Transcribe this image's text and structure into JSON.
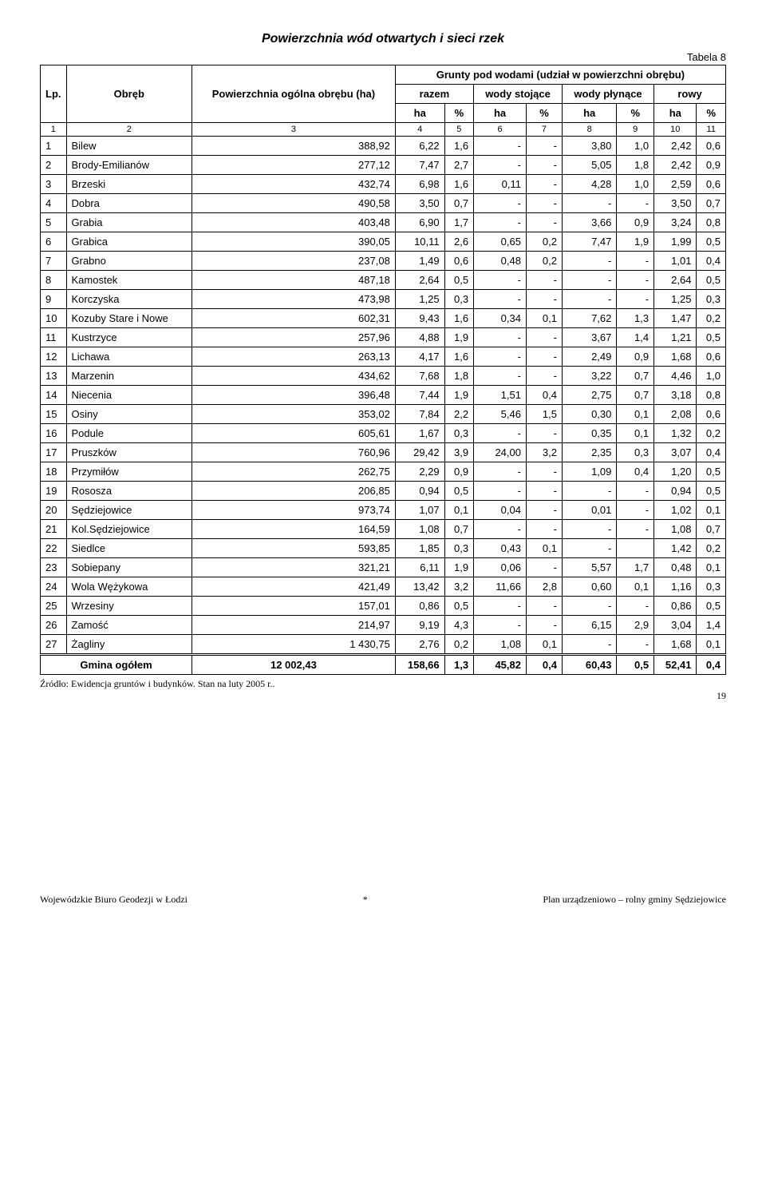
{
  "title": "Powierzchnia wód otwartych i sieci rzek",
  "table_label": "Tabela 8",
  "header": {
    "lp": "Lp.",
    "obreb": "Obręb",
    "pow": "Powierzchnia ogólna obrębu (ha)",
    "grunty": "Grunty pod wodami (udział w powierzchni obrębu)",
    "razem": "razem",
    "stojace": "wody stojące",
    "plynace": "wody płynące",
    "rowy": "rowy",
    "ha": "ha",
    "pct": "%"
  },
  "colnums": [
    "1",
    "2",
    "3",
    "4",
    "5",
    "6",
    "7",
    "8",
    "9",
    "10",
    "11"
  ],
  "rows": [
    {
      "lp": "1",
      "n": "Bilew",
      "p": "388,92",
      "r1": "6,22",
      "r2": "1,6",
      "s1": "-",
      "s2": "-",
      "pl1": "3,80",
      "pl2": "1,0",
      "ro1": "2,42",
      "ro2": "0,6"
    },
    {
      "lp": "2",
      "n": "Brody-Emilianów",
      "p": "277,12",
      "r1": "7,47",
      "r2": "2,7",
      "s1": "-",
      "s2": "-",
      "pl1": "5,05",
      "pl2": "1,8",
      "ro1": "2,42",
      "ro2": "0,9"
    },
    {
      "lp": "3",
      "n": "Brzeski",
      "p": "432,74",
      "r1": "6,98",
      "r2": "1,6",
      "s1": "0,11",
      "s2": "-",
      "pl1": "4,28",
      "pl2": "1,0",
      "ro1": "2,59",
      "ro2": "0,6"
    },
    {
      "lp": "4",
      "n": "Dobra",
      "p": "490,58",
      "r1": "3,50",
      "r2": "0,7",
      "s1": "-",
      "s2": "-",
      "pl1": "-",
      "pl2": "-",
      "ro1": "3,50",
      "ro2": "0,7"
    },
    {
      "lp": "5",
      "n": "Grabia",
      "p": "403,48",
      "r1": "6,90",
      "r2": "1,7",
      "s1": "-",
      "s2": "-",
      "pl1": "3,66",
      "pl2": "0,9",
      "ro1": "3,24",
      "ro2": "0,8"
    },
    {
      "lp": "6",
      "n": "Grabica",
      "p": "390,05",
      "r1": "10,11",
      "r2": "2,6",
      "s1": "0,65",
      "s2": "0,2",
      "pl1": "7,47",
      "pl2": "1,9",
      "ro1": "1,99",
      "ro2": "0,5"
    },
    {
      "lp": "7",
      "n": "Grabno",
      "p": "237,08",
      "r1": "1,49",
      "r2": "0,6",
      "s1": "0,48",
      "s2": "0,2",
      "pl1": "-",
      "pl2": "-",
      "ro1": "1,01",
      "ro2": "0,4"
    },
    {
      "lp": "8",
      "n": "Kamostek",
      "p": "487,18",
      "r1": "2,64",
      "r2": "0,5",
      "s1": "-",
      "s2": "-",
      "pl1": "-",
      "pl2": "-",
      "ro1": "2,64",
      "ro2": "0,5"
    },
    {
      "lp": "9",
      "n": "Korczyska",
      "p": "473,98",
      "r1": "1,25",
      "r2": "0,3",
      "s1": "-",
      "s2": "-",
      "pl1": "-",
      "pl2": "-",
      "ro1": "1,25",
      "ro2": "0,3"
    },
    {
      "lp": "10",
      "n": "Kozuby Stare i Nowe",
      "p": "602,31",
      "r1": "9,43",
      "r2": "1,6",
      "s1": "0,34",
      "s2": "0,1",
      "pl1": "7,62",
      "pl2": "1,3",
      "ro1": "1,47",
      "ro2": "0,2"
    },
    {
      "lp": "11",
      "n": "Kustrzyce",
      "p": "257,96",
      "r1": "4,88",
      "r2": "1,9",
      "s1": "-",
      "s2": "-",
      "pl1": "3,67",
      "pl2": "1,4",
      "ro1": "1,21",
      "ro2": "0,5"
    },
    {
      "lp": "12",
      "n": "Lichawa",
      "p": "263,13",
      "r1": "4,17",
      "r2": "1,6",
      "s1": "-",
      "s2": "-",
      "pl1": "2,49",
      "pl2": "0,9",
      "ro1": "1,68",
      "ro2": "0,6"
    },
    {
      "lp": "13",
      "n": "Marzenin",
      "p": "434,62",
      "r1": "7,68",
      "r2": "1,8",
      "s1": "-",
      "s2": "-",
      "pl1": "3,22",
      "pl2": "0,7",
      "ro1": "4,46",
      "ro2": "1,0"
    },
    {
      "lp": "14",
      "n": "Niecenia",
      "p": "396,48",
      "r1": "7,44",
      "r2": "1,9",
      "s1": "1,51",
      "s2": "0,4",
      "pl1": "2,75",
      "pl2": "0,7",
      "ro1": "3,18",
      "ro2": "0,8"
    },
    {
      "lp": "15",
      "n": "Osiny",
      "p": "353,02",
      "r1": "7,84",
      "r2": "2,2",
      "s1": "5,46",
      "s2": "1,5",
      "pl1": "0,30",
      "pl2": "0,1",
      "ro1": "2,08",
      "ro2": "0,6"
    },
    {
      "lp": "16",
      "n": "Podule",
      "p": "605,61",
      "r1": "1,67",
      "r2": "0,3",
      "s1": "-",
      "s2": "-",
      "pl1": "0,35",
      "pl2": "0,1",
      "ro1": "1,32",
      "ro2": "0,2"
    },
    {
      "lp": "17",
      "n": "Pruszków",
      "p": "760,96",
      "r1": "29,42",
      "r2": "3,9",
      "s1": "24,00",
      "s2": "3,2",
      "pl1": "2,35",
      "pl2": "0,3",
      "ro1": "3,07",
      "ro2": "0,4"
    },
    {
      "lp": "18",
      "n": "Przymiłów",
      "p": "262,75",
      "r1": "2,29",
      "r2": "0,9",
      "s1": "-",
      "s2": "-",
      "pl1": "1,09",
      "pl2": "0,4",
      "ro1": "1,20",
      "ro2": "0,5"
    },
    {
      "lp": "19",
      "n": "Rososza",
      "p": "206,85",
      "r1": "0,94",
      "r2": "0,5",
      "s1": "-",
      "s2": "-",
      "pl1": "-",
      "pl2": "-",
      "ro1": "0,94",
      "ro2": "0,5"
    },
    {
      "lp": "20",
      "n": "Sędziejowice",
      "p": "973,74",
      "r1": "1,07",
      "r2": "0,1",
      "s1": "0,04",
      "s2": "-",
      "pl1": "0,01",
      "pl2": "-",
      "ro1": "1,02",
      "ro2": "0,1"
    },
    {
      "lp": "21",
      "n": "Kol.Sędziejowice",
      "p": "164,59",
      "r1": "1,08",
      "r2": "0,7",
      "s1": "-",
      "s2": "-",
      "pl1": "-",
      "pl2": "-",
      "ro1": "1,08",
      "ro2": "0,7"
    },
    {
      "lp": "22",
      "n": "Siedlce",
      "p": "593,85",
      "r1": "1,85",
      "r2": "0,3",
      "s1": "0,43",
      "s2": "0,1",
      "pl1": "-",
      "pl2": "",
      "ro1": "1,42",
      "ro2": "0,2"
    },
    {
      "lp": "23",
      "n": "Sobiepany",
      "p": "321,21",
      "r1": "6,11",
      "r2": "1,9",
      "s1": "0,06",
      "s2": "-",
      "pl1": "5,57",
      "pl2": "1,7",
      "ro1": "0,48",
      "ro2": "0,1"
    },
    {
      "lp": "24",
      "n": "Wola Wężykowa",
      "p": "421,49",
      "r1": "13,42",
      "r2": "3,2",
      "s1": "11,66",
      "s2": "2,8",
      "pl1": "0,60",
      "pl2": "0,1",
      "ro1": "1,16",
      "ro2": "0,3"
    },
    {
      "lp": "25",
      "n": "Wrzesiny",
      "p": "157,01",
      "r1": "0,86",
      "r2": "0,5",
      "s1": "-",
      "s2": "-",
      "pl1": "-",
      "pl2": "-",
      "ro1": "0,86",
      "ro2": "0,5"
    },
    {
      "lp": "26",
      "n": "Zamość",
      "p": "214,97",
      "r1": "9,19",
      "r2": "4,3",
      "s1": "-",
      "s2": "-",
      "pl1": "6,15",
      "pl2": "2,9",
      "ro1": "3,04",
      "ro2": "1,4"
    },
    {
      "lp": "27",
      "n": "Żagliny",
      "p": "1 430,75",
      "r1": "2,76",
      "r2": "0,2",
      "s1": "1,08",
      "s2": "0,1",
      "pl1": "-",
      "pl2": "-",
      "ro1": "1,68",
      "ro2": "0,1"
    }
  ],
  "total": {
    "label": "Gmina ogółem",
    "p": "12 002,43",
    "r1": "158,66",
    "r2": "1,3",
    "s1": "45,82",
    "s2": "0,4",
    "pl1": "60,43",
    "pl2": "0,5",
    "ro1": "52,41",
    "ro2": "0,4"
  },
  "source": "Źródło: Ewidencja gruntów i budynków. Stan na luty 2005 r..",
  "footer": {
    "left": "Wojewódzkie Biuro Geodezji w Łodzi",
    "sep": "*",
    "right": "Plan urządzeniowo – rolny gminy Sędziejowice",
    "page": "19"
  }
}
